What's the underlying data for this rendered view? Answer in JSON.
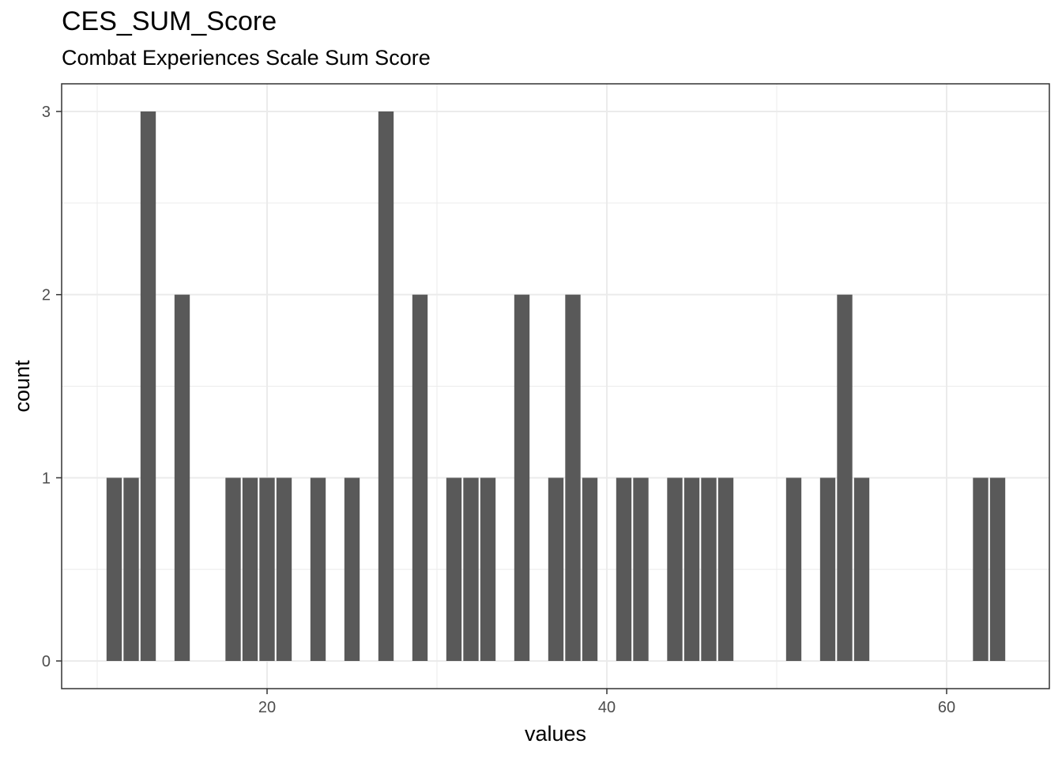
{
  "chart_data": {
    "type": "bar",
    "title": "CES_SUM_Score",
    "subtitle": "Combat Experiences Scale Sum Score",
    "xlabel": "values",
    "ylabel": "count",
    "xlim": [
      8,
      63.5
    ],
    "ylim": [
      0,
      3
    ],
    "x_ticks": [
      20,
      40,
      60
    ],
    "y_ticks": [
      0,
      1,
      2,
      3
    ],
    "grid": true,
    "bar_color": "#595959",
    "points": [
      {
        "x": 11,
        "y": 1
      },
      {
        "x": 12,
        "y": 1
      },
      {
        "x": 13,
        "y": 3
      },
      {
        "x": 15,
        "y": 2
      },
      {
        "x": 18,
        "y": 1
      },
      {
        "x": 19,
        "y": 1
      },
      {
        "x": 20,
        "y": 1
      },
      {
        "x": 21,
        "y": 1
      },
      {
        "x": 23,
        "y": 1
      },
      {
        "x": 25,
        "y": 1
      },
      {
        "x": 27,
        "y": 3
      },
      {
        "x": 29,
        "y": 2
      },
      {
        "x": 31,
        "y": 1
      },
      {
        "x": 32,
        "y": 1
      },
      {
        "x": 33,
        "y": 1
      },
      {
        "x": 35,
        "y": 2
      },
      {
        "x": 37,
        "y": 1
      },
      {
        "x": 38,
        "y": 2
      },
      {
        "x": 39,
        "y": 1
      },
      {
        "x": 41,
        "y": 1
      },
      {
        "x": 42,
        "y": 1
      },
      {
        "x": 44,
        "y": 1
      },
      {
        "x": 45,
        "y": 1
      },
      {
        "x": 46,
        "y": 1
      },
      {
        "x": 47,
        "y": 1
      },
      {
        "x": 51,
        "y": 1
      },
      {
        "x": 53,
        "y": 1
      },
      {
        "x": 54,
        "y": 2
      },
      {
        "x": 55,
        "y": 1
      },
      {
        "x": 62,
        "y": 1
      },
      {
        "x": 63,
        "y": 1
      }
    ]
  }
}
